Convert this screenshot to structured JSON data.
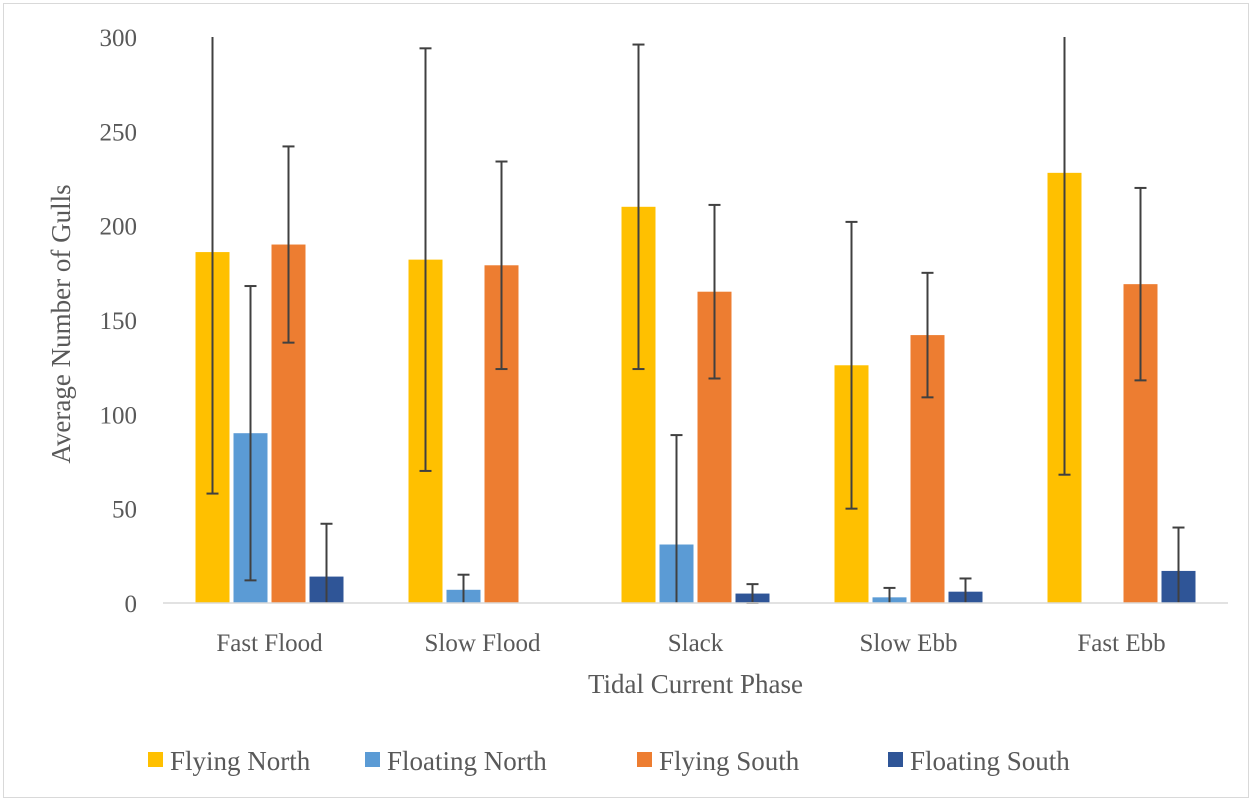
{
  "chart_data": {
    "type": "bar",
    "title": "",
    "xlabel": "Tidal Current Phase",
    "ylabel": "Average Number of Gulls",
    "ylim": [
      0,
      300
    ],
    "yticks": [
      0,
      50,
      100,
      150,
      200,
      250,
      300
    ],
    "grid": false,
    "legend_position": "bottom",
    "error_bars": true,
    "categories": [
      "Fast Flood",
      "Slow Flood",
      "Slack",
      "Slow Ebb",
      "Fast Ebb"
    ],
    "series": [
      {
        "name": "Flying North",
        "color": "#FFC000",
        "values": [
          186,
          182,
          210,
          126,
          228
        ],
        "errors": [
          128,
          112,
          86,
          76,
          160
        ]
      },
      {
        "name": "Floating North",
        "color": "#5B9BD5",
        "values": [
          90,
          7,
          31,
          3,
          0
        ],
        "errors": [
          78,
          8,
          58,
          5,
          0
        ]
      },
      {
        "name": "Flying South",
        "color": "#ED7D31",
        "values": [
          190,
          179,
          165,
          142,
          169
        ],
        "errors": [
          52,
          55,
          46,
          33,
          51
        ]
      },
      {
        "name": "Floating South",
        "color": "#2F5597",
        "values": [
          14,
          0,
          5,
          6,
          17
        ],
        "errors": [
          28,
          0,
          5,
          7,
          23
        ]
      }
    ]
  }
}
